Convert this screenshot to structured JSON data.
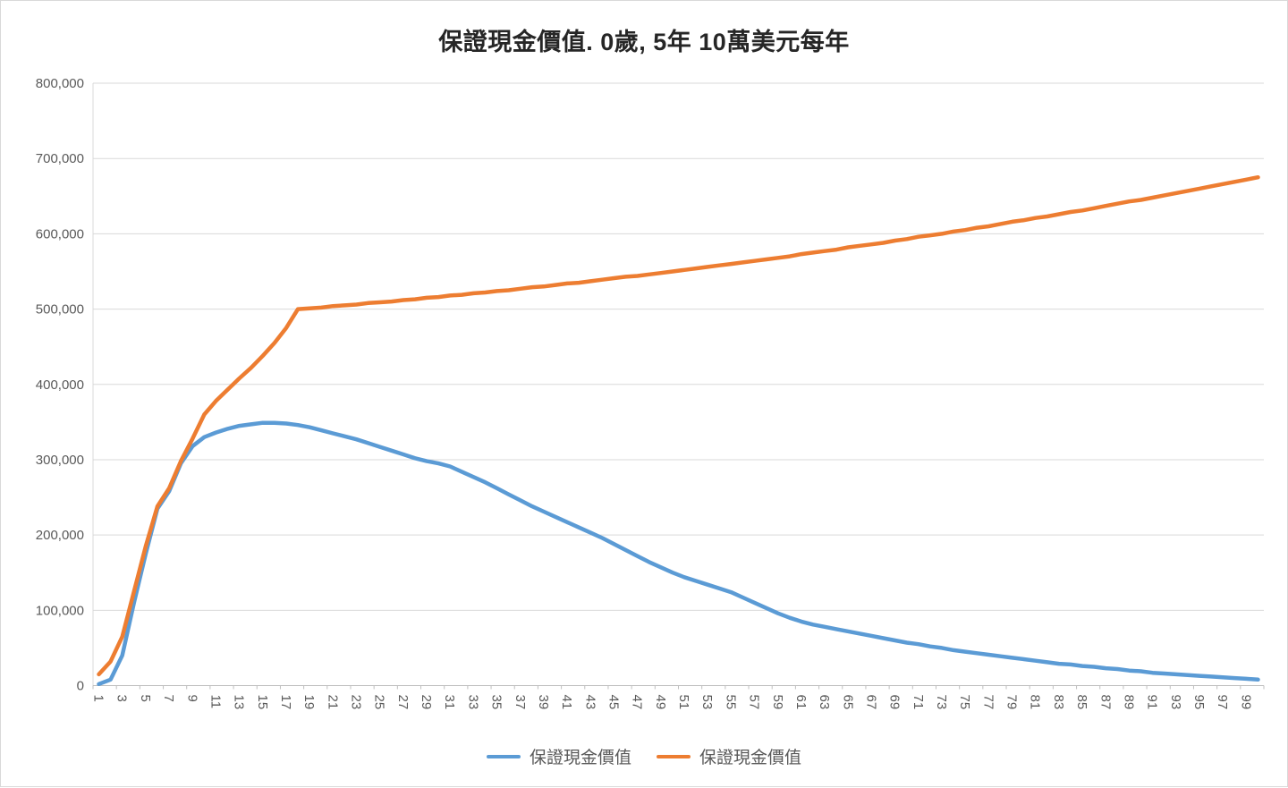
{
  "title": "保證現金價值. 0歲, 5年 10萬美元每年",
  "legend": {
    "items": [
      {
        "label": "保證現金價值",
        "color": "#5B9BD5"
      },
      {
        "label": "保證現金價值",
        "color": "#ED7D31"
      }
    ]
  },
  "chart_data": {
    "type": "line",
    "title": "保證現金價值. 0歲, 5年 10萬美元每年",
    "xlabel": "",
    "ylabel": "",
    "ylim": [
      0,
      800000
    ],
    "ytick_interval": 100000,
    "ytick_labels": [
      "0",
      "100,000",
      "200,000",
      "300,000",
      "400,000",
      "500,000",
      "600,000",
      "700,000",
      "800,000"
    ],
    "xtick_labels": [
      "1",
      "3",
      "5",
      "7",
      "9",
      "11",
      "13",
      "15",
      "17",
      "19",
      "21",
      "23",
      "25",
      "27",
      "29",
      "31",
      "33",
      "35",
      "37",
      "39",
      "41",
      "43",
      "45",
      "47",
      "49",
      "51",
      "53",
      "55",
      "57",
      "59",
      "61",
      "63",
      "65",
      "67",
      "69",
      "71",
      "73",
      "75",
      "77",
      "79",
      "81",
      "83",
      "85",
      "87",
      "89",
      "91",
      "93",
      "95",
      "97",
      "99"
    ],
    "grid": "horizontal",
    "legend_position": "bottom",
    "colors": {
      "grid": "#D9D9D9",
      "axis": "#BFBFBF",
      "tick_text": "#595959",
      "title_text": "#262626",
      "background": "#FFFFFF"
    },
    "x": [
      1,
      2,
      3,
      4,
      5,
      6,
      7,
      8,
      9,
      10,
      11,
      12,
      13,
      14,
      15,
      16,
      17,
      18,
      19,
      20,
      21,
      22,
      23,
      24,
      25,
      26,
      27,
      28,
      29,
      30,
      31,
      32,
      33,
      34,
      35,
      36,
      37,
      38,
      39,
      40,
      41,
      42,
      43,
      44,
      45,
      46,
      47,
      48,
      49,
      50,
      51,
      52,
      53,
      54,
      55,
      56,
      57,
      58,
      59,
      60,
      61,
      62,
      63,
      64,
      65,
      66,
      67,
      68,
      69,
      70,
      71,
      72,
      73,
      74,
      75,
      76,
      77,
      78,
      79,
      80,
      81,
      82,
      83,
      84,
      85,
      86,
      87,
      88,
      89,
      90,
      91,
      92,
      93,
      94,
      95,
      96,
      97,
      98,
      99,
      100
    ],
    "series": [
      {
        "name": "保證現金價值",
        "color": "#5B9BD5",
        "values": [
          2000,
          8000,
          40000,
          110000,
          175000,
          235000,
          258000,
          295000,
          318000,
          330000,
          336000,
          341000,
          345000,
          347000,
          349000,
          349000,
          348000,
          346000,
          343000,
          339000,
          335000,
          331000,
          327000,
          322000,
          317000,
          312000,
          307000,
          302000,
          298000,
          295000,
          291000,
          284000,
          277000,
          270000,
          262000,
          254000,
          246000,
          238000,
          231000,
          224000,
          217000,
          210000,
          203000,
          196000,
          188000,
          180000,
          172000,
          164000,
          157000,
          150000,
          144000,
          139000,
          134000,
          129000,
          124000,
          117000,
          110000,
          103000,
          96000,
          90000,
          85000,
          81000,
          78000,
          75000,
          72000,
          69000,
          66000,
          63000,
          60000,
          57000,
          55000,
          52000,
          50000,
          47000,
          45000,
          43000,
          41000,
          39000,
          37000,
          35000,
          33000,
          31000,
          29000,
          28000,
          26000,
          25000,
          23000,
          22000,
          20000,
          19000,
          17000,
          16000,
          15000,
          14000,
          13000,
          12000,
          11000,
          10000,
          9000,
          8000
        ]
      },
      {
        "name": "保證現金價值",
        "color": "#ED7D31",
        "values": [
          15000,
          32000,
          65000,
          125000,
          185000,
          238000,
          262000,
          298000,
          328000,
          360000,
          378000,
          393000,
          408000,
          422000,
          438000,
          455000,
          475000,
          500000,
          501000,
          502000,
          504000,
          505000,
          506000,
          508000,
          509000,
          510000,
          512000,
          513000,
          515000,
          516000,
          518000,
          519000,
          521000,
          522000,
          524000,
          525000,
          527000,
          529000,
          530000,
          532000,
          534000,
          535000,
          537000,
          539000,
          541000,
          543000,
          544000,
          546000,
          548000,
          550000,
          552000,
          554000,
          556000,
          558000,
          560000,
          562000,
          564000,
          566000,
          568000,
          570000,
          573000,
          575000,
          577000,
          579000,
          582000,
          584000,
          586000,
          588000,
          591000,
          593000,
          596000,
          598000,
          600000,
          603000,
          605000,
          608000,
          610000,
          613000,
          616000,
          618000,
          621000,
          623000,
          626000,
          629000,
          631000,
          634000,
          637000,
          640000,
          643000,
          645000,
          648000,
          651000,
          654000,
          657000,
          660000,
          663000,
          666000,
          669000,
          672000,
          675000
        ]
      }
    ]
  }
}
